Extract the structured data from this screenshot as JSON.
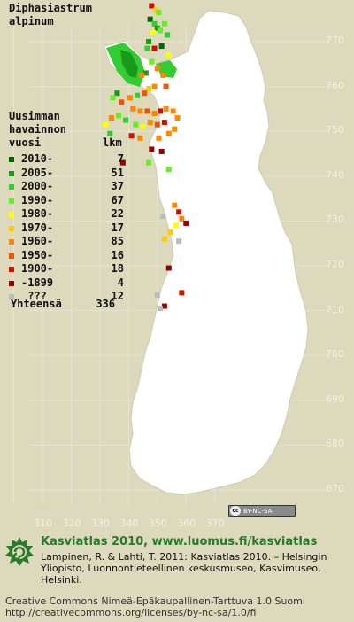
{
  "species": {
    "line1": "Diphasiastrum",
    "line2": "alpinum"
  },
  "legend": {
    "heading": [
      "Uusimman",
      "havainnon",
      "vuosi"
    ],
    "count_header": "lkm",
    "rows": [
      {
        "label": "2010-",
        "count": "7",
        "color": "#006600"
      },
      {
        "label": "2005-",
        "count": "51",
        "color": "#1a9a1a"
      },
      {
        "label": "2000-",
        "count": "37",
        "color": "#33cc33"
      },
      {
        "label": "1990-",
        "count": "67",
        "color": "#66ee22"
      },
      {
        "label": "1980-",
        "count": "22",
        "color": "#ffff00"
      },
      {
        "label": "1970-",
        "count": "17",
        "color": "#ffcc00"
      },
      {
        "label": "1960-",
        "count": "85",
        "color": "#ff8800"
      },
      {
        "label": "1950-",
        "count": "16",
        "color": "#ee5500"
      },
      {
        "label": "1900-",
        "count": "18",
        "color": "#cc1100"
      },
      {
        "label": "-1899",
        "count": "4",
        "color": "#990000"
      },
      {
        "label": " ???",
        "count": "12",
        "color": "#bbbbbb"
      }
    ],
    "total_label": "Yhteensä",
    "total_count": "336"
  },
  "axes": {
    "y_ticks": [
      "770",
      "760",
      "750",
      "740",
      "730",
      "720",
      "710",
      "700",
      "690",
      "680",
      "670"
    ],
    "x_ticks": [
      "310",
      "320",
      "330",
      "340",
      "350",
      "360",
      "370"
    ]
  },
  "license_badge": {
    "cc": "cc",
    "terms": "BY-NC-SA"
  },
  "footer": {
    "title": "Kasviatlas 2010, www.luomus.fi/kasviatlas",
    "citation": "Lampinen, R. & Lahti, T. 2011: Kasviatlas 2010. – Helsingin Yliopisto, Luonnontieteellinen keskusmuseo, Kasvimuseo, Helsinki.",
    "license_line1": "Creative Commons Nimeä-Epäkaupallinen-Tarttuva 1.0 Suomi",
    "license_line2": "http://creativecommons.org/licenses/by-nc-sa/1.0/fi"
  },
  "colors": {
    "land": "#ffffff",
    "background": "#dcd9bd",
    "grid": "#e6e4d6",
    "brand_green": "#2a7a2a"
  },
  "map_data": {
    "grid_units": "Finnish uniform grid (YKJ) 10 km squares",
    "x_range": [
      300,
      370
    ],
    "y_range": [
      665,
      778
    ],
    "observations": [
      {
        "x": 348.0,
        "y": 778.0,
        "c": 8
      },
      {
        "x": 349.5,
        "y": 777.0,
        "c": 5
      },
      {
        "x": 350.5,
        "y": 776.5,
        "c": 3
      },
      {
        "x": 347.5,
        "y": 775.0,
        "c": 0
      },
      {
        "x": 349.0,
        "y": 774.0,
        "c": 2
      },
      {
        "x": 350.0,
        "y": 773.0,
        "c": 1
      },
      {
        "x": 351.0,
        "y": 772.5,
        "c": 3
      },
      {
        "x": 348.5,
        "y": 772.0,
        "c": 4
      },
      {
        "x": 347.0,
        "y": 770.0,
        "c": 1
      },
      {
        "x": 346.5,
        "y": 768.5,
        "c": 2
      },
      {
        "x": 349.0,
        "y": 768.5,
        "c": 8
      },
      {
        "x": 351.5,
        "y": 769.0,
        "c": 0
      },
      {
        "x": 352.5,
        "y": 774.0,
        "c": 3
      },
      {
        "x": 353.5,
        "y": 771.5,
        "c": 2
      },
      {
        "x": 354.0,
        "y": 767.0,
        "c": 4
      },
      {
        "x": 348.0,
        "y": 765.5,
        "c": 3
      },
      {
        "x": 350.0,
        "y": 764.0,
        "c": 6
      },
      {
        "x": 346.0,
        "y": 763.0,
        "c": 1
      },
      {
        "x": 344.5,
        "y": 762.5,
        "c": 6
      },
      {
        "x": 352.0,
        "y": 762.5,
        "c": 6
      },
      {
        "x": 355.0,
        "y": 763.5,
        "c": 2
      },
      {
        "x": 353.0,
        "y": 760.0,
        "c": 7
      },
      {
        "x": 349.0,
        "y": 760.0,
        "c": 6
      },
      {
        "x": 347.0,
        "y": 759.5,
        "c": 5
      },
      {
        "x": 345.5,
        "y": 758.5,
        "c": 7
      },
      {
        "x": 343.0,
        "y": 758.0,
        "c": 2
      },
      {
        "x": 340.5,
        "y": 757.5,
        "c": 6
      },
      {
        "x": 336.0,
        "y": 758.5,
        "c": 1
      },
      {
        "x": 334.5,
        "y": 757.5,
        "c": 3
      },
      {
        "x": 337.5,
        "y": 756.5,
        "c": 7
      },
      {
        "x": 341.5,
        "y": 755.0,
        "c": 6
      },
      {
        "x": 344.0,
        "y": 754.5,
        "c": 6
      },
      {
        "x": 346.5,
        "y": 754.5,
        "c": 7
      },
      {
        "x": 349.0,
        "y": 754.0,
        "c": 6
      },
      {
        "x": 351.0,
        "y": 754.5,
        "c": 8
      },
      {
        "x": 353.0,
        "y": 755.0,
        "c": 6
      },
      {
        "x": 355.5,
        "y": 754.5,
        "c": 6
      },
      {
        "x": 357.0,
        "y": 753.0,
        "c": 6
      },
      {
        "x": 352.5,
        "y": 752.0,
        "c": 8
      },
      {
        "x": 350.0,
        "y": 751.5,
        "c": 7
      },
      {
        "x": 347.5,
        "y": 752.0,
        "c": 6
      },
      {
        "x": 345.0,
        "y": 751.0,
        "c": 4
      },
      {
        "x": 342.5,
        "y": 751.5,
        "c": 3
      },
      {
        "x": 339.0,
        "y": 752.5,
        "c": 2
      },
      {
        "x": 336.5,
        "y": 753.5,
        "c": 3
      },
      {
        "x": 334.0,
        "y": 753.0,
        "c": 6
      },
      {
        "x": 332.0,
        "y": 751.5,
        "c": 4
      },
      {
        "x": 333.5,
        "y": 749.5,
        "c": 2
      },
      {
        "x": 341.0,
        "y": 749.0,
        "c": 8
      },
      {
        "x": 344.0,
        "y": 748.5,
        "c": 6
      },
      {
        "x": 350.5,
        "y": 748.5,
        "c": 6
      },
      {
        "x": 354.0,
        "y": 749.5,
        "c": 6
      },
      {
        "x": 356.0,
        "y": 750.5,
        "c": 6
      },
      {
        "x": 348.0,
        "y": 746.0,
        "c": 9
      },
      {
        "x": 351.5,
        "y": 745.5,
        "c": 9
      },
      {
        "x": 338.0,
        "y": 743.0,
        "c": 9
      },
      {
        "x": 347.0,
        "y": 743.0,
        "c": 3
      },
      {
        "x": 354.0,
        "y": 741.5,
        "c": 3
      },
      {
        "x": 356.0,
        "y": 733.5,
        "c": 6
      },
      {
        "x": 357.5,
        "y": 732.0,
        "c": 8
      },
      {
        "x": 358.5,
        "y": 730.5,
        "c": 6
      },
      {
        "x": 360.0,
        "y": 729.5,
        "c": 9
      },
      {
        "x": 356.5,
        "y": 729.0,
        "c": 4
      },
      {
        "x": 354.5,
        "y": 727.5,
        "c": 5
      },
      {
        "x": 352.0,
        "y": 731.0,
        "c": 10
      },
      {
        "x": 352.5,
        "y": 726.0,
        "c": 5
      },
      {
        "x": 357.5,
        "y": 725.5,
        "c": 10
      },
      {
        "x": 354.0,
        "y": 719.5,
        "c": 9
      },
      {
        "x": 350.0,
        "y": 713.5,
        "c": 10
      },
      {
        "x": 358.5,
        "y": 714.0,
        "c": 8
      },
      {
        "x": 352.5,
        "y": 711.0,
        "c": 9
      },
      {
        "x": 351.0,
        "y": 710.5,
        "c": 10
      }
    ]
  }
}
